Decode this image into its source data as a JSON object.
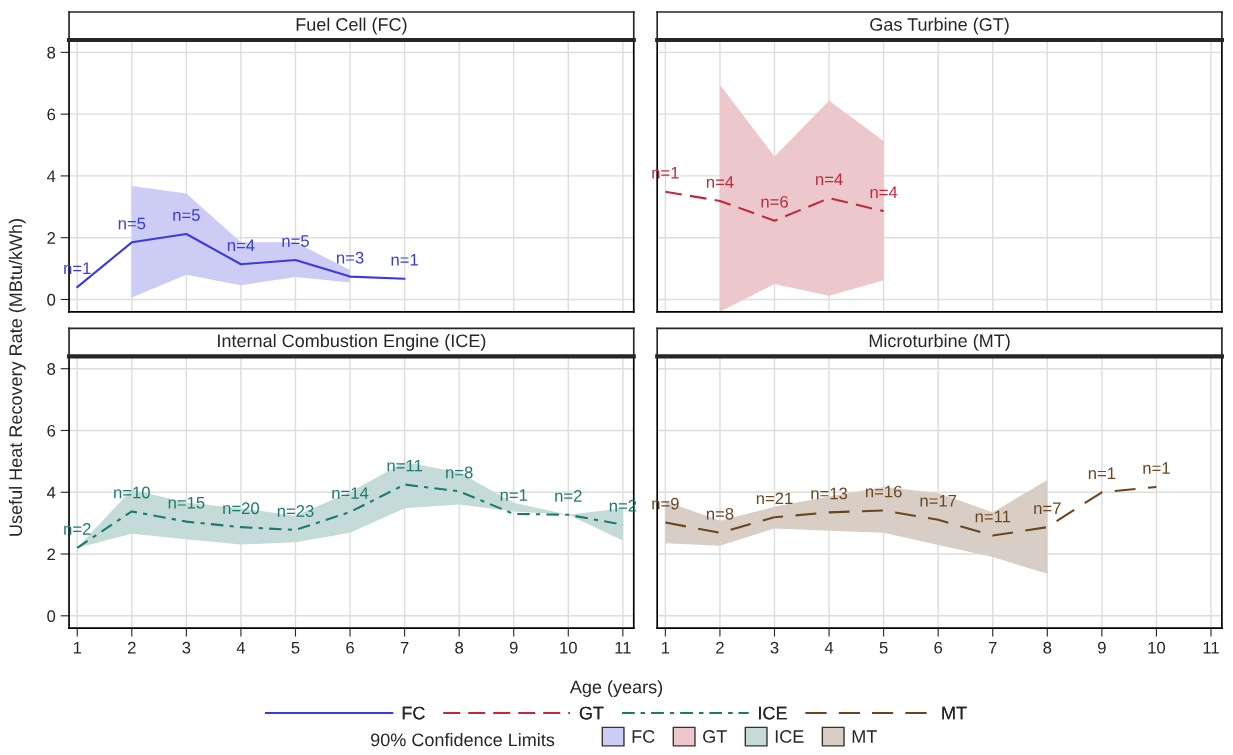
{
  "chart_data": [
    {
      "type": "line",
      "title": "Fuel Cell (FC)",
      "xlabel": "Age (years)",
      "ylabel": "Useful Heat Recovery Rate (MBtu/kWh)",
      "legend": "bottom",
      "legend_title": "90% Confidence Limits",
      "x": [
        1,
        2,
        3,
        4,
        5,
        6,
        7
      ],
      "xlim": [
        0.85,
        11.2
      ],
      "ylim": [
        -0.4,
        8.4
      ],
      "xticks": [
        1,
        2,
        3,
        4,
        5,
        6,
        7,
        8,
        9,
        10,
        11
      ],
      "yticks": [
        0,
        2,
        4,
        6,
        8
      ],
      "grid": true,
      "tick_labels": "y",
      "series": [
        {
          "name": "FC",
          "color": "#3a3ae0",
          "line_style": "solid",
          "values": [
            0.4,
            1.85,
            2.12,
            1.14,
            1.28,
            0.74,
            0.67
          ],
          "lower": [
            null,
            0.06,
            0.8,
            0.46,
            0.73,
            0.55,
            null
          ],
          "upper": [
            null,
            3.67,
            3.43,
            1.85,
            1.85,
            0.95,
            null
          ]
        }
      ],
      "annotations": [
        {
          "text": "n=1",
          "x": 1,
          "y": 0.4
        },
        {
          "text": "n=5",
          "x": 2,
          "y": 1.85
        },
        {
          "text": "n=5",
          "x": 3,
          "y": 2.12
        },
        {
          "text": "n=4",
          "x": 4,
          "y": 1.14
        },
        {
          "text": "n=5",
          "x": 5,
          "y": 1.28
        },
        {
          "text": "n=3",
          "x": 6,
          "y": 0.74
        },
        {
          "text": "n=1",
          "x": 7,
          "y": 0.67
        }
      ]
    },
    {
      "type": "line",
      "title": "Gas Turbine (GT)",
      "x": [
        1,
        2,
        3,
        4,
        5
      ],
      "xlim": [
        0.85,
        11.2
      ],
      "ylim": [
        -0.4,
        8.4
      ],
      "xticks": [
        1,
        2,
        3,
        4,
        5,
        6,
        7,
        8,
        9,
        10,
        11
      ],
      "yticks": [
        0,
        2,
        4,
        6,
        8
      ],
      "grid": true,
      "tick_labels": false,
      "series": [
        {
          "name": "GT",
          "color": "#c0283c",
          "line_style": "dashed",
          "values": [
            3.49,
            3.19,
            2.55,
            3.28,
            2.86
          ],
          "lower": [
            null,
            -0.4,
            0.5,
            0.12,
            0.62
          ],
          "upper": [
            null,
            6.95,
            4.63,
            6.43,
            5.13
          ]
        }
      ],
      "annotations": [
        {
          "text": "n=1",
          "x": 1,
          "y": 3.49
        },
        {
          "text": "n=4",
          "x": 2,
          "y": 3.19
        },
        {
          "text": "n=6",
          "x": 3,
          "y": 2.55
        },
        {
          "text": "n=4",
          "x": 4,
          "y": 3.28
        },
        {
          "text": "n=4",
          "x": 5,
          "y": 2.86
        }
      ]
    },
    {
      "type": "line",
      "title": "Internal Combustion Engine (ICE)",
      "x": [
        1,
        2,
        3,
        4,
        5,
        6,
        7,
        8,
        9,
        10,
        11
      ],
      "xlim": [
        0.85,
        11.2
      ],
      "ylim": [
        -0.4,
        8.4
      ],
      "xticks": [
        1,
        2,
        3,
        4,
        5,
        6,
        7,
        8,
        9,
        10,
        11
      ],
      "yticks": [
        0,
        2,
        4,
        6,
        8
      ],
      "grid": true,
      "series": [
        {
          "name": "ICE",
          "color": "#1b7a6e",
          "line_style": "dashed",
          "values": [
            2.2,
            3.38,
            3.05,
            2.87,
            2.78,
            3.36,
            4.25,
            4.03,
            3.3,
            3.27,
            2.95
          ],
          "lower": [
            2.2,
            2.66,
            2.48,
            2.31,
            2.38,
            2.69,
            3.48,
            3.6,
            3.38,
            3.27,
            2.44
          ],
          "upper": [
            2.2,
            4.09,
            3.66,
            3.48,
            3.24,
            4.0,
            4.98,
            4.64,
            3.66,
            3.27,
            3.48
          ]
        }
      ],
      "annotations": [
        {
          "text": "n=2",
          "x": 1,
          "y": 2.2
        },
        {
          "text": "n=10",
          "x": 2,
          "y": 3.38
        },
        {
          "text": "n=15",
          "x": 3,
          "y": 3.05
        },
        {
          "text": "n=20",
          "x": 4,
          "y": 2.87
        },
        {
          "text": "n=23",
          "x": 5,
          "y": 2.78
        },
        {
          "text": "n=14",
          "x": 6,
          "y": 3.36
        },
        {
          "text": "n=11",
          "x": 7,
          "y": 4.25
        },
        {
          "text": "n=8",
          "x": 8,
          "y": 4.03
        },
        {
          "text": "n=1",
          "x": 9,
          "y": 3.3
        },
        {
          "text": "n=2",
          "x": 10,
          "y": 3.27
        },
        {
          "text": "n=2",
          "x": 11,
          "y": 2.95
        }
      ]
    },
    {
      "type": "line",
      "title": "Microturbine (MT)",
      "x": [
        1,
        2,
        3,
        4,
        5,
        6,
        7,
        8,
        9,
        10
      ],
      "xlim": [
        0.85,
        11.2
      ],
      "ylim": [
        -0.4,
        8.4
      ],
      "xticks": [
        1,
        2,
        3,
        4,
        5,
        6,
        7,
        8,
        9,
        10,
        11
      ],
      "yticks": [
        0,
        2,
        4,
        6,
        8
      ],
      "grid": true,
      "tick_labels": "x",
      "series": [
        {
          "name": "MT",
          "color": "#6b4520",
          "line_style": "dashed",
          "values": [
            3.02,
            2.69,
            3.19,
            3.35,
            3.41,
            3.11,
            2.6,
            2.87,
            4.0,
            4.17
          ],
          "lower": [
            2.35,
            2.27,
            2.83,
            2.75,
            2.69,
            2.29,
            1.9,
            1.36,
            null,
            null
          ],
          "upper": [
            3.71,
            3.08,
            3.53,
            3.86,
            4.17,
            3.98,
            3.35,
            4.4,
            null,
            null
          ]
        }
      ],
      "annotations": [
        {
          "text": "n=9",
          "x": 1,
          "y": 3.02
        },
        {
          "text": "n=8",
          "x": 2,
          "y": 2.69
        },
        {
          "text": "n=21",
          "x": 3,
          "y": 3.19
        },
        {
          "text": "n=13",
          "x": 4,
          "y": 3.35
        },
        {
          "text": "n=16",
          "x": 5,
          "y": 3.41
        },
        {
          "text": "n=17",
          "x": 6,
          "y": 3.11
        },
        {
          "text": "n=11",
          "x": 7,
          "y": 2.6
        },
        {
          "text": "n=7",
          "x": 8,
          "y": 2.87
        },
        {
          "text": "n=1",
          "x": 9,
          "y": 4.0
        },
        {
          "text": "n=1",
          "x": 10,
          "y": 4.17
        }
      ]
    }
  ]
}
